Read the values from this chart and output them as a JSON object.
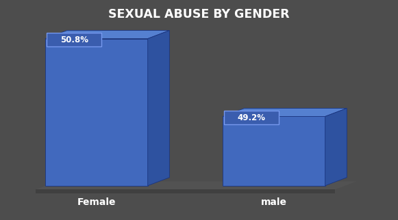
{
  "title": "SEXUAL ABUSE BY GENDER",
  "categories": [
    "Female",
    "male"
  ],
  "values": [
    50.8,
    49.2
  ],
  "labels": [
    "50.8%",
    "49.2%"
  ],
  "bar_color_front": "#4169BE",
  "bar_color_top": "#5580D0",
  "bar_color_side": "#2E52A0",
  "background_color": "#4D4D4D",
  "floor_color": "#5A5A5A",
  "floor_dark_color": "#3A3A3A",
  "title_color": "#FFFFFF",
  "label_color": "#FFFFFF",
  "xlabel_color": "#FFFFFF",
  "label_box_color": "#3A5DAE",
  "label_box_edge_color": "#7799EE"
}
